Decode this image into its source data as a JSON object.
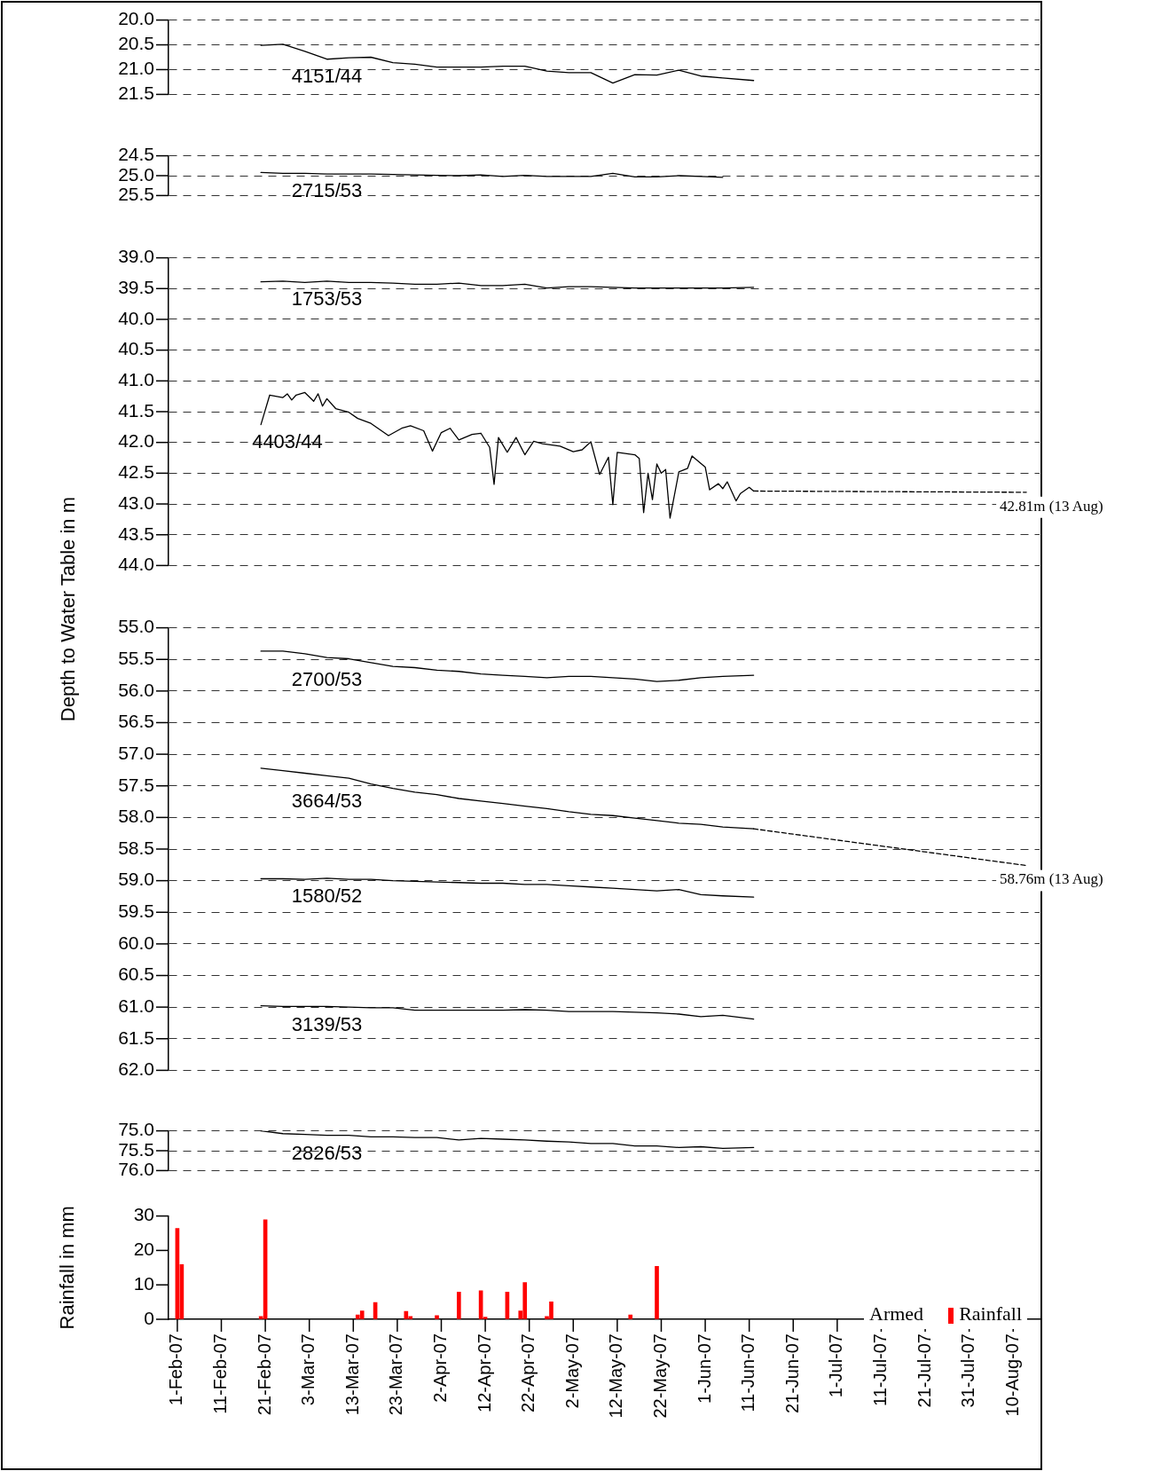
{
  "chart_data": [
    {
      "type": "line",
      "xlim": [
        "--01-30",
        "--08-16"
      ],
      "ylim": [
        21.5,
        20.0
      ],
      "yticks": [
        {
          "value": 20,
          "label": "20.0"
        },
        {
          "value": 20.5,
          "label": "20.5"
        },
        {
          "value": 21,
          "label": "21.0"
        },
        {
          "value": 21.5,
          "label": "21.5"
        }
      ],
      "grid": "y",
      "tick_labels": "y",
      "x": [
        "--02-20",
        "--02-25",
        "--03-02",
        "--03-07",
        "--03-12",
        "--03-17",
        "--03-22",
        "--03-27",
        "--04-01",
        "--04-06",
        "--04-11",
        "--04-16",
        "--04-21",
        "--04-26",
        "--05-01",
        "--05-06",
        "--05-11",
        "--05-16",
        "--05-21",
        "--05-26",
        "--05-31",
        "--06-05",
        "--06-12"
      ],
      "series": [
        {
          "name": "4151/44",
          "color": "#000000",
          "values": [
            20.51,
            20.49,
            20.63,
            20.79,
            20.76,
            20.75,
            20.86,
            20.89,
            20.95,
            20.95,
            20.95,
            20.93,
            20.93,
            21.03,
            21.06,
            21.06,
            21.27,
            21.1,
            21.11,
            21.01,
            21.13,
            21.17,
            21.22
          ]
        }
      ]
    },
    {
      "type": "line",
      "xlim": [
        "--01-30",
        "--08-16"
      ],
      "ylim": [
        25.5,
        24.5
      ],
      "yticks": [
        {
          "value": 24.5,
          "label": "24.5"
        },
        {
          "value": 25,
          "label": "25.0"
        },
        {
          "value": 25.5,
          "label": "25.5"
        }
      ],
      "grid": "y",
      "tick_labels": "y",
      "x": [
        "--02-20",
        "--02-25",
        "--03-02",
        "--03-07",
        "--03-12",
        "--03-17",
        "--03-22",
        "--03-27",
        "--04-01",
        "--04-06",
        "--04-11",
        "--04-16",
        "--04-21",
        "--04-26",
        "--05-01",
        "--05-06",
        "--05-11",
        "--05-16",
        "--05-21",
        "--05-26",
        "--05-31",
        "--06-05"
      ],
      "series": [
        {
          "name": "2715/53",
          "color": "#000000",
          "values": [
            24.92,
            24.94,
            24.94,
            24.96,
            24.96,
            24.96,
            24.97,
            24.98,
            24.99,
            25.0,
            24.98,
            25.02,
            24.99,
            25.02,
            25.02,
            25.02,
            24.94,
            25.03,
            25.03,
            25.0,
            25.02,
            25.04
          ]
        }
      ]
    },
    {
      "type": "line",
      "xlim": [
        "--01-30",
        "--08-16"
      ],
      "ylim": [
        44.0,
        39.0
      ],
      "yticks": [
        {
          "value": 39,
          "label": "39.0"
        },
        {
          "value": 39.5,
          "label": "39.5"
        },
        {
          "value": 40,
          "label": "40.0"
        },
        {
          "value": 40.5,
          "label": "40.5"
        },
        {
          "value": 41,
          "label": "41.0"
        },
        {
          "value": 41.5,
          "label": "41.5"
        },
        {
          "value": 42,
          "label": "42.0"
        },
        {
          "value": 42.5,
          "label": "42.5"
        },
        {
          "value": 43,
          "label": "43.0"
        },
        {
          "value": 43.5,
          "label": "43.5"
        },
        {
          "value": 44,
          "label": "44.0"
        }
      ],
      "grid": "y",
      "tick_labels": "y",
      "x": [
        "--02-20",
        "--02-25",
        "--03-02",
        "--03-07",
        "--03-12",
        "--03-17",
        "--03-22",
        "--03-27",
        "--04-01",
        "--04-06",
        "--04-11",
        "--04-16",
        "--04-21",
        "--04-26",
        "--05-01",
        "--05-06",
        "--05-11",
        "--05-16",
        "--05-21",
        "--05-26",
        "--05-31",
        "--06-05",
        "--06-12"
      ],
      "series": [
        {
          "name": "1753/53",
          "color": "#000000",
          "values": [
            39.39,
            39.38,
            39.4,
            39.38,
            39.4,
            39.4,
            39.41,
            39.43,
            39.43,
            39.41,
            39.45,
            39.45,
            39.43,
            39.49,
            39.47,
            39.47,
            39.48,
            39.49,
            39.49,
            39.49,
            39.49,
            39.49,
            39.48
          ]
        },
        {
          "name": "4403/44",
          "color": "#000000",
          "x": [
            "--02-20",
            "--02-22",
            "--02-25",
            "--02-26",
            "--02-27",
            "--02-28",
            "--03-02",
            "--03-04",
            "--03-05",
            "--03-06",
            "--03-07",
            "--03-09",
            "--03-12",
            "--03-14",
            "--03-17",
            "--03-21",
            "--03-24",
            "--03-26",
            "--03-29",
            "--03-31",
            "--04-02",
            "--04-04",
            "--04-06",
            "--04-09",
            "--04-11",
            "--04-13",
            "--04-14",
            "--04-15",
            "--04-17",
            "--04-19",
            "--04-21",
            "--04-23",
            "--04-25",
            "--04-29",
            "--05-02",
            "--05-04",
            "--05-06",
            "--05-08",
            "--05-10",
            "--05-11",
            "--05-12",
            "--05-16",
            "--05-17",
            "--05-18",
            "--05-19",
            "--05-20",
            "--05-21",
            "--05-22",
            "--05-23",
            "--05-24",
            "--05-26",
            "--05-28",
            "--05-29",
            "--06-01",
            "--06-02",
            "--06-04",
            "--06-05",
            "--06-06",
            "--06-08",
            "--06-09",
            "--06-11",
            "--06-12"
          ],
          "values": [
            41.71,
            41.23,
            41.27,
            41.21,
            41.31,
            41.23,
            41.19,
            41.33,
            41.21,
            41.41,
            41.29,
            41.45,
            41.51,
            41.61,
            41.69,
            41.89,
            41.77,
            41.73,
            41.81,
            42.14,
            41.84,
            41.77,
            41.96,
            41.87,
            41.85,
            42.08,
            42.68,
            41.92,
            42.16,
            41.92,
            42.2,
            41.98,
            42.02,
            42.06,
            42.15,
            42.12,
            41.99,
            42.52,
            42.24,
            43.01,
            42.16,
            42.2,
            42.26,
            43.14,
            42.5,
            42.93,
            42.35,
            42.5,
            42.44,
            43.23,
            42.48,
            42.42,
            42.22,
            42.4,
            42.77,
            42.67,
            42.75,
            42.64,
            42.95,
            42.83,
            42.73,
            42.79
          ]
        },
        {
          "type": "line",
          "line_style": "dashed",
          "color": "#000000",
          "x": [
            "--06-12",
            "--08-13"
          ],
          "values": [
            42.79,
            42.81
          ]
        }
      ],
      "annotations": [
        {
          "text": "42.81m (13 Aug)",
          "x": "--08-13",
          "y": 42.81
        }
      ]
    },
    {
      "type": "line",
      "xlim": [
        "--01-30",
        "--08-16"
      ],
      "ylim": [
        62.0,
        55.0
      ],
      "yticks": [
        {
          "value": 55,
          "label": "55.0"
        },
        {
          "value": 55.5,
          "label": "55.5"
        },
        {
          "value": 56,
          "label": "56.0"
        },
        {
          "value": 56.5,
          "label": "56.5"
        },
        {
          "value": 57,
          "label": "57.0"
        },
        {
          "value": 57.5,
          "label": "57.5"
        },
        {
          "value": 58,
          "label": "58.0"
        },
        {
          "value": 58.5,
          "label": "58.5"
        },
        {
          "value": 59,
          "label": "59.0"
        },
        {
          "value": 59.5,
          "label": "59.5"
        },
        {
          "value": 60,
          "label": "60.0"
        },
        {
          "value": 60.5,
          "label": "60.5"
        },
        {
          "value": 61,
          "label": "61.0"
        },
        {
          "value": 61.5,
          "label": "61.5"
        },
        {
          "value": 62,
          "label": "62.0"
        }
      ],
      "grid": "y",
      "tick_labels": "y",
      "ylabel": "Depth to Water Table in m",
      "x": [
        "--02-20",
        "--02-25",
        "--03-02",
        "--03-07",
        "--03-12",
        "--03-17",
        "--03-22",
        "--03-27",
        "--04-01",
        "--04-06",
        "--04-11",
        "--04-16",
        "--04-21",
        "--04-26",
        "--05-01",
        "--05-06",
        "--05-11",
        "--05-16",
        "--05-21",
        "--05-26",
        "--05-31",
        "--06-05",
        "--06-12"
      ],
      "series": [
        {
          "name": "2700/53",
          "color": "#000000",
          "values": [
            55.37,
            55.37,
            55.41,
            55.47,
            55.49,
            55.55,
            55.61,
            55.63,
            55.67,
            55.69,
            55.73,
            55.75,
            55.77,
            55.79,
            55.77,
            55.77,
            55.79,
            55.81,
            55.85,
            55.83,
            55.79,
            55.77,
            55.75
          ]
        },
        {
          "name": "3664/53",
          "color": "#000000",
          "values": [
            57.22,
            57.26,
            57.3,
            57.34,
            57.38,
            57.47,
            57.54,
            57.6,
            57.64,
            57.7,
            57.74,
            57.78,
            57.82,
            57.86,
            57.91,
            57.95,
            57.97,
            58.01,
            58.05,
            58.09,
            58.11,
            58.15,
            58.18
          ]
        },
        {
          "type": "line",
          "line_style": "dashed",
          "color": "#000000",
          "x": [
            "--06-12",
            "--08-13"
          ],
          "values": [
            58.18,
            58.76
          ]
        },
        {
          "name": "1580/52",
          "color": "#000000",
          "values": [
            58.97,
            58.97,
            58.98,
            58.96,
            58.98,
            58.98,
            59.0,
            59.01,
            59.02,
            59.03,
            59.04,
            59.04,
            59.06,
            59.06,
            59.08,
            59.1,
            59.12,
            59.14,
            59.16,
            59.14,
            59.22,
            59.24,
            59.26
          ]
        },
        {
          "name": "3139/53",
          "color": "#000000",
          "values": [
            60.98,
            60.99,
            60.99,
            60.99,
            61.0,
            61.01,
            61.01,
            61.05,
            61.05,
            61.05,
            61.05,
            61.05,
            61.04,
            61.05,
            61.07,
            61.07,
            61.07,
            61.08,
            61.09,
            61.11,
            61.15,
            61.13,
            61.19
          ]
        }
      ],
      "annotations": [
        {
          "text": "58.76m (13 Aug)",
          "x": "--08-13",
          "y": 58.76
        }
      ]
    },
    {
      "type": "line",
      "xlim": [
        "--01-30",
        "--08-16"
      ],
      "ylim": [
        76.0,
        75.0
      ],
      "yticks": [
        {
          "value": 75,
          "label": "75.0"
        },
        {
          "value": 75.5,
          "label": "75.5"
        },
        {
          "value": 76,
          "label": "76.0"
        }
      ],
      "grid": "y",
      "tick_labels": "y",
      "x": [
        "--02-20",
        "--02-25",
        "--03-02",
        "--03-07",
        "--03-12",
        "--03-17",
        "--03-22",
        "--03-27",
        "--04-01",
        "--04-06",
        "--04-11",
        "--04-16",
        "--04-21",
        "--04-26",
        "--05-01",
        "--05-06",
        "--05-11",
        "--05-16",
        "--05-21",
        "--05-26",
        "--05-31",
        "--06-05",
        "--06-12"
      ],
      "series": [
        {
          "name": "2826/53",
          "color": "#000000",
          "values": [
            75.0,
            75.07,
            75.09,
            75.11,
            75.11,
            75.15,
            75.15,
            75.17,
            75.17,
            75.23,
            75.19,
            75.21,
            75.23,
            75.26,
            75.28,
            75.32,
            75.32,
            75.38,
            75.38,
            75.42,
            75.4,
            75.44,
            75.42
          ]
        }
      ]
    },
    {
      "type": "bar",
      "xlim": [
        "--01-30",
        "--08-16"
      ],
      "ylim": [
        0,
        30
      ],
      "yticks": [
        0,
        10,
        20,
        30
      ],
      "ylabel": "Rainfall in mm",
      "legend": "bottom right",
      "legend_title": "Armed",
      "xticks": [
        {
          "value": "--02-01",
          "label": "1-Feb-07"
        },
        {
          "value": "--02-11",
          "label": "11-Feb-07"
        },
        {
          "value": "--02-21",
          "label": "21-Feb-07"
        },
        {
          "value": "--03-03",
          "label": "3-Mar-07"
        },
        {
          "value": "--03-13",
          "label": "13-Mar-07"
        },
        {
          "value": "--03-23",
          "label": "23-Mar-07"
        },
        {
          "value": "--04-02",
          "label": "2-Apr-07"
        },
        {
          "value": "--04-12",
          "label": "12-Apr-07"
        },
        {
          "value": "--04-22",
          "label": "22-Apr-07"
        },
        {
          "value": "--05-02",
          "label": "2-May-07"
        },
        {
          "value": "--05-12",
          "label": "12-May-07"
        },
        {
          "value": "--05-22",
          "label": "22-May-07"
        },
        {
          "value": "--06-01",
          "label": "1-Jun-07"
        },
        {
          "value": "--06-11",
          "label": "11-Jun-07"
        },
        {
          "value": "--06-21",
          "label": "21-Jun-07"
        },
        {
          "value": "--07-01",
          "label": "1-Jul-07"
        },
        {
          "value": "--07-11",
          "label": "11-Jul-07"
        },
        {
          "value": "--07-21",
          "label": "21-Jul-07"
        },
        {
          "value": "--07-31",
          "label": "31-Jul-07"
        },
        {
          "value": "--08-10",
          "label": "10-Aug-07"
        }
      ],
      "x": [
        "--02-01",
        "--02-02",
        "--02-20",
        "--02-21",
        "--03-14",
        "--03-15",
        "--03-18",
        "--03-25",
        "--03-26",
        "--04-01",
        "--04-06",
        "--04-11",
        "--04-12",
        "--04-17",
        "--04-20",
        "--04-21",
        "--04-26",
        "--04-27",
        "--05-15",
        "--05-21"
      ],
      "series": [
        {
          "name": "Rainfall",
          "color": "#ff0000",
          "values": [
            26.4,
            15.9,
            0.8,
            28.9,
            1.3,
            2.4,
            4.9,
            2.3,
            0.8,
            1.1,
            7.9,
            8.3,
            0.6,
            7.9,
            2.4,
            10.7,
            0.8,
            5.1,
            1.3,
            15.4
          ]
        }
      ]
    }
  ]
}
